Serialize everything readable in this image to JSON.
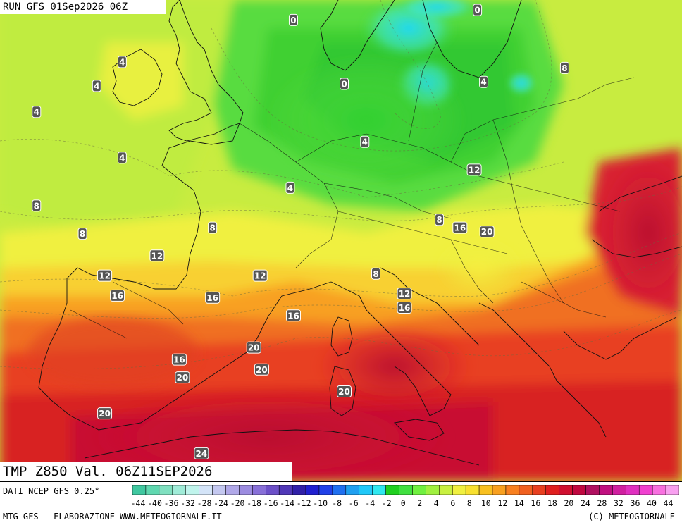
{
  "header": {
    "run_label": "RUN GFS 01Sep2026 06Z"
  },
  "field_label": "TMP Z850 Val. 06Z11SEP2026",
  "footer": {
    "data_source": "DATI NCEP GFS 0.25°",
    "credit_left": "MTG-GFS — ELABORAZIONE WWW.METEOGIORNALE.IT",
    "credit_right": "(C) METEOGIORNALE"
  },
  "map": {
    "variable": "Temperature at 850 hPa (°C)",
    "isotherm_labels": [
      {
        "v": "0",
        "lon": 6.0,
        "lat": 56.6
      },
      {
        "v": "0",
        "lon": 17.6,
        "lat": 57.1
      },
      {
        "v": "0",
        "lon": 9.2,
        "lat": 53.4
      },
      {
        "v": "4",
        "lon": -4.8,
        "lat": 54.5
      },
      {
        "v": "4",
        "lon": -6.4,
        "lat": 53.3
      },
      {
        "v": "4",
        "lon": -10.2,
        "lat": 52.0
      },
      {
        "v": "4",
        "lon": -4.8,
        "lat": 49.7
      },
      {
        "v": "4",
        "lon": 5.8,
        "lat": 48.2
      },
      {
        "v": "4",
        "lon": 10.5,
        "lat": 50.5
      },
      {
        "v": "4",
        "lon": 18.0,
        "lat": 53.5
      },
      {
        "v": "8",
        "lon": 23.1,
        "lat": 54.2
      },
      {
        "v": "8",
        "lon": -10.2,
        "lat": 47.3
      },
      {
        "v": "8",
        "lon": -7.3,
        "lat": 45.9
      },
      {
        "v": "8",
        "lon": 0.9,
        "lat": 46.2
      },
      {
        "v": "8",
        "lon": 15.2,
        "lat": 46.6
      },
      {
        "v": "8",
        "lon": 11.2,
        "lat": 43.9
      },
      {
        "v": "12",
        "lon": -2.6,
        "lat": 44.8
      },
      {
        "v": "12",
        "lon": -5.9,
        "lat": 43.8
      },
      {
        "v": "12",
        "lon": 3.9,
        "lat": 43.8
      },
      {
        "v": "12",
        "lon": 17.4,
        "lat": 49.1
      },
      {
        "v": "12",
        "lon": 13.0,
        "lat": 42.9
      },
      {
        "v": "16",
        "lon": -5.1,
        "lat": 42.8
      },
      {
        "v": "16",
        "lon": 0.9,
        "lat": 42.7
      },
      {
        "v": "16",
        "lon": 6.0,
        "lat": 41.8
      },
      {
        "v": "16",
        "lon": 16.5,
        "lat": 46.2
      },
      {
        "v": "16",
        "lon": 13.0,
        "lat": 42.2
      },
      {
        "v": "16",
        "lon": -1.2,
        "lat": 39.6
      },
      {
        "v": "20",
        "lon": 18.2,
        "lat": 46.0
      },
      {
        "v": "20",
        "lon": 3.5,
        "lat": 40.2
      },
      {
        "v": "20",
        "lon": 4.0,
        "lat": 39.1
      },
      {
        "v": "20",
        "lon": -1.0,
        "lat": 38.7
      },
      {
        "v": "20",
        "lon": 9.2,
        "lat": 38.0
      },
      {
        "v": "20",
        "lon": -5.9,
        "lat": 36.9
      },
      {
        "v": "24",
        "lon": 0.2,
        "lat": 34.9
      }
    ]
  },
  "colorbar": {
    "ticks": [
      "-44",
      "-40",
      "-36",
      "-32",
      "-28",
      "-24",
      "-20",
      "-18",
      "-16",
      "-14",
      "-12",
      "-10",
      "-8",
      "-6",
      "-4",
      "-2",
      "0",
      "2",
      "4",
      "6",
      "8",
      "10",
      "12",
      "14",
      "16",
      "18",
      "20",
      "24",
      "28",
      "32",
      "36",
      "40",
      "44"
    ],
    "colors": [
      "#40c8a0",
      "#60d8b0",
      "#80e0c0",
      "#a0ecd8",
      "#c0f4ec",
      "#d4e4f8",
      "#c4c8f0",
      "#b0a8e8",
      "#9c8ce0",
      "#8870d8",
      "#6c50c8",
      "#5038b8",
      "#3020a8",
      "#2020d0",
      "#2040e8",
      "#2070f0",
      "#20a0f0",
      "#20c8f8",
      "#30e8f0",
      "#20d020",
      "#40e040",
      "#70f040",
      "#a0f040",
      "#c8f040",
      "#f0f040",
      "#f8e030",
      "#f8c020",
      "#f8a020",
      "#f88020",
      "#f06020",
      "#e84020",
      "#e02020",
      "#d01030",
      "#c00840",
      "#b01060",
      "#c01080",
      "#d020a0",
      "#e030c0",
      "#f040d0",
      "#f870e0",
      "#f8a0f0"
    ]
  }
}
